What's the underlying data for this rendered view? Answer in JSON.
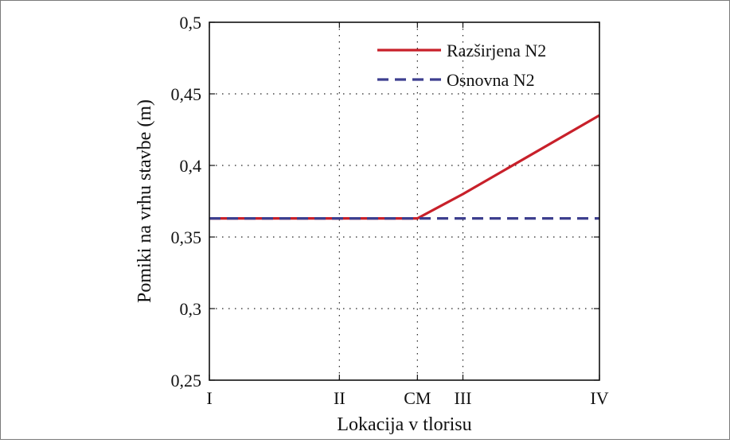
{
  "chart_data": {
    "type": "line",
    "xlabel": "Lokacija v tlorisu",
    "ylabel": "Pomiki na vrhu stavbe (m)",
    "x_ticks": [
      "I",
      "II",
      "CM",
      "III",
      "IV"
    ],
    "x_tick_positions": [
      0,
      1,
      1.6,
      1.95,
      3
    ],
    "xlim": [
      0,
      3
    ],
    "ylim": [
      0.25,
      0.5
    ],
    "y_ticks": [
      0.25,
      0.3,
      0.35,
      0.4,
      0.45,
      0.5
    ],
    "y_tick_labels": [
      "0,25",
      "0,3",
      "0,35",
      "0,4",
      "0,45",
      "0,5"
    ],
    "grid": true,
    "legend_position": "top-right",
    "series": [
      {
        "name": "Razširjena N2",
        "color": "#c8202a",
        "style": "solid",
        "x": [
          0,
          1,
          1.6,
          1.95,
          3
        ],
        "y": [
          0.363,
          0.363,
          0.363,
          0.38,
          0.435
        ]
      },
      {
        "name": "Osnovna N2",
        "color": "#3d3f8f",
        "style": "dashed",
        "x": [
          0,
          1,
          1.6,
          1.95,
          3
        ],
        "y": [
          0.363,
          0.363,
          0.363,
          0.363,
          0.363
        ]
      }
    ]
  }
}
